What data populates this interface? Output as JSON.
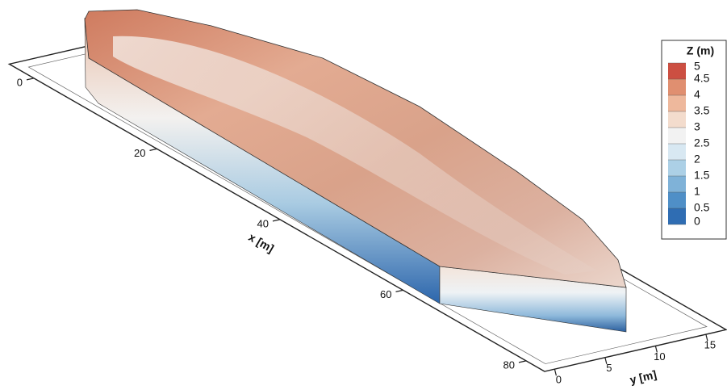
{
  "chart_data": {
    "type": "surface3d",
    "xlabel": "x [m]",
    "ylabel": "y [m]",
    "xlim": [
      -4,
      83
    ],
    "ylim": [
      -1,
      17
    ],
    "xticks": [
      0,
      20,
      40,
      60,
      80
    ],
    "yticks": [
      0,
      5,
      10,
      15
    ],
    "colorbar": {
      "title": "Z (m)",
      "clim": [
        0,
        5
      ],
      "ticks": [
        0,
        0.5,
        1,
        1.5,
        2,
        2.5,
        3,
        3.5,
        4,
        4.5,
        5
      ],
      "colors": [
        "#2f6db3",
        "#4f8fc7",
        "#7fb2d8",
        "#acd0e6",
        "#d8e8f2",
        "#f2f2f2",
        "#f3dccd",
        "#eeb89c",
        "#e08f70",
        "#cc4f42"
      ]
    }
  }
}
